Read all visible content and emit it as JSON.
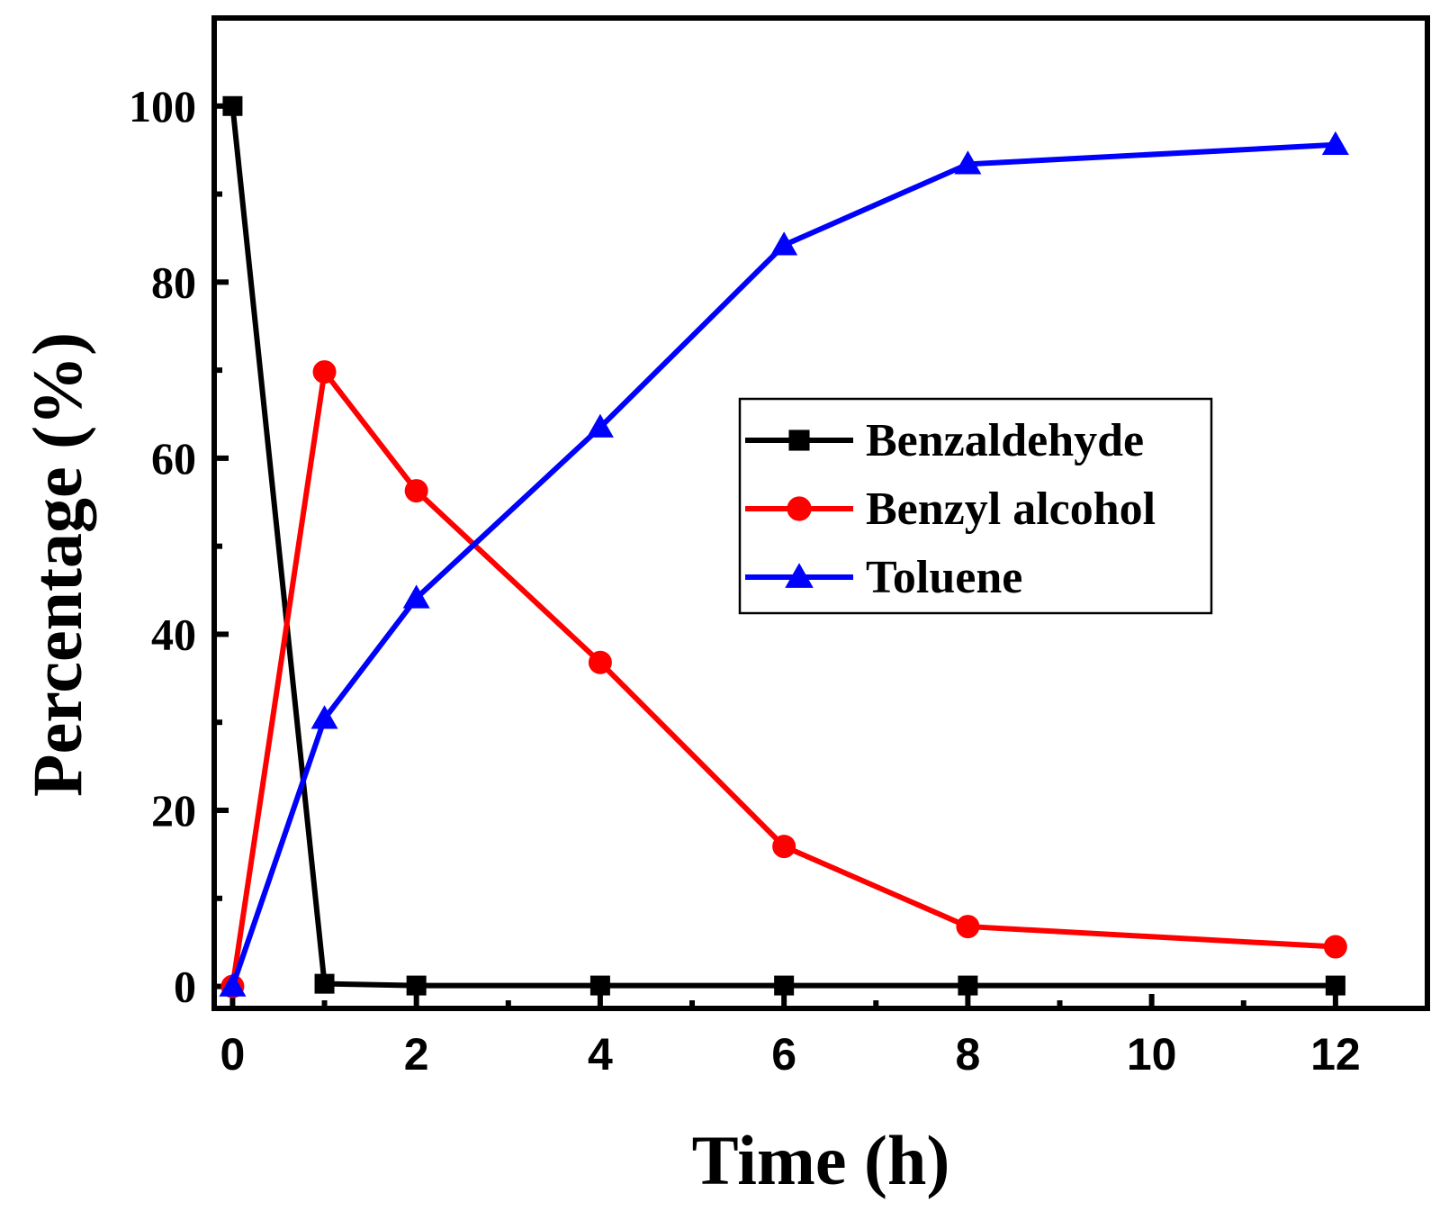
{
  "chart_data": {
    "type": "line",
    "title": "",
    "xlabel": "Time (h)",
    "ylabel": "Percentage (%)",
    "xlim": [
      -0.2,
      13.0
    ],
    "ylim": [
      -2.5,
      110
    ],
    "x_ticks": [
      0,
      2,
      4,
      6,
      8,
      10,
      12
    ],
    "x_minor_ticks": [
      1,
      3,
      5,
      7,
      9,
      11
    ],
    "y_ticks": [
      0,
      20,
      40,
      60,
      80,
      100
    ],
    "y_minor_ticks": [
      10,
      30,
      50,
      70,
      90
    ],
    "x_tick_labels": [
      "0",
      "2",
      "4",
      "6",
      "8",
      "10",
      "12"
    ],
    "y_tick_labels": [
      "0",
      "20",
      "40",
      "60",
      "80",
      "100"
    ],
    "grid": false,
    "legend_position": "center-right",
    "x": [
      0,
      1,
      2,
      4,
      6,
      8,
      12
    ],
    "series": [
      {
        "name": "Benzaldehyde",
        "color": "#000000",
        "marker": "square",
        "values": [
          100,
          0.3,
          0.1,
          0.1,
          0.1,
          0.1,
          0.1
        ]
      },
      {
        "name": "Benzyl alcohol",
        "color": "#ff0000",
        "marker": "circle",
        "values": [
          0,
          69.8,
          56.3,
          36.8,
          15.9,
          6.8,
          4.5
        ]
      },
      {
        "name": "Toluene",
        "color": "#0000ff",
        "marker": "triangle",
        "values": [
          0,
          30.4,
          44.1,
          63.5,
          84.2,
          93.4,
          95.6
        ]
      }
    ]
  }
}
